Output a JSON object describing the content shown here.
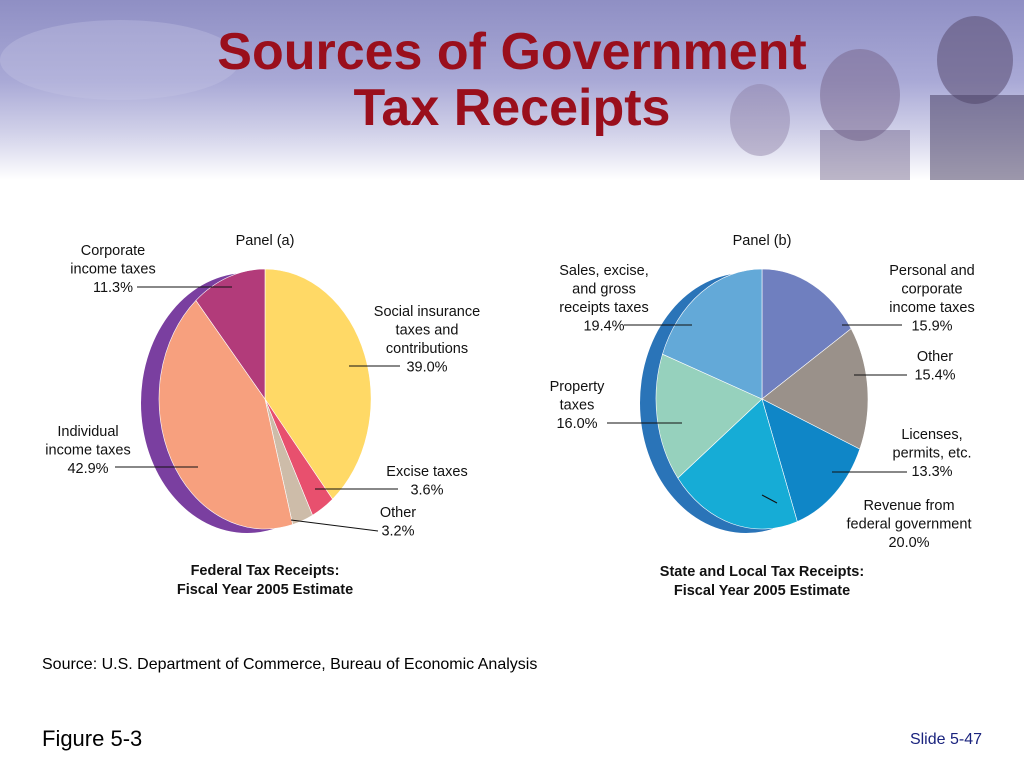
{
  "slide": {
    "title_line1": "Sources of Government",
    "title_line2": "Tax Receipts",
    "source": "Source: U.S. Department of Commerce, Bureau of Economic Analysis",
    "figure": "Figure 5-3",
    "slide_number": "Slide 5-47"
  },
  "chart_data": [
    {
      "type": "pie",
      "panel_label": "Panel (a)",
      "caption_line1": "Federal Tax Receipts:",
      "caption_line2": "Fiscal Year 2005 Estimate",
      "unit": "%",
      "slices": [
        {
          "label_lines": [
            "Social insurance",
            "taxes and",
            "contributions"
          ],
          "value": 39.0,
          "value_text": "39.0%",
          "color": "#ffd966"
        },
        {
          "label_lines": [
            "Excise taxes"
          ],
          "value": 3.6,
          "value_text": "3.6%",
          "color": "#e8506e"
        },
        {
          "label_lines": [
            "Other"
          ],
          "value": 3.2,
          "value_text": "3.2%",
          "color": "#cdbca9"
        },
        {
          "label_lines": [
            "Individual",
            "income taxes"
          ],
          "value": 42.9,
          "value_text": "42.9%",
          "color": "#f7a07e"
        },
        {
          "label_lines": [
            "Corporate",
            "income taxes"
          ],
          "value": 11.3,
          "value_text": "11.3%",
          "color": "#b23b7a"
        }
      ],
      "side_color": "#7a3fa0"
    },
    {
      "type": "pie",
      "panel_label": "Panel (b)",
      "caption_line1": "State and Local Tax Receipts:",
      "caption_line2": "Fiscal Year 2005 Estimate",
      "unit": "%",
      "slices": [
        {
          "label_lines": [
            "Personal and",
            "corporate",
            "income taxes"
          ],
          "value": 15.9,
          "value_text": "15.9%",
          "color": "#6f7fbf"
        },
        {
          "label_lines": [
            "Other"
          ],
          "value": 15.4,
          "value_text": "15.4%",
          "color": "#9a918a"
        },
        {
          "label_lines": [
            "Licenses,",
            "permits, etc."
          ],
          "value": 13.3,
          "value_text": "13.3%",
          "color": "#0f86c7"
        },
        {
          "label_lines": [
            "Revenue from",
            "federal government"
          ],
          "value": 20.0,
          "value_text": "20.0%",
          "color": "#16acd6"
        },
        {
          "label_lines": [
            "Property",
            "taxes"
          ],
          "value": 16.0,
          "value_text": "16.0%",
          "color": "#96d1bd"
        },
        {
          "label_lines": [
            "Sales, excise,",
            "and gross",
            "receipts taxes"
          ],
          "value": 19.4,
          "value_text": "19.4%",
          "color": "#63a9d8"
        }
      ],
      "side_color": "#2a74b8"
    }
  ]
}
